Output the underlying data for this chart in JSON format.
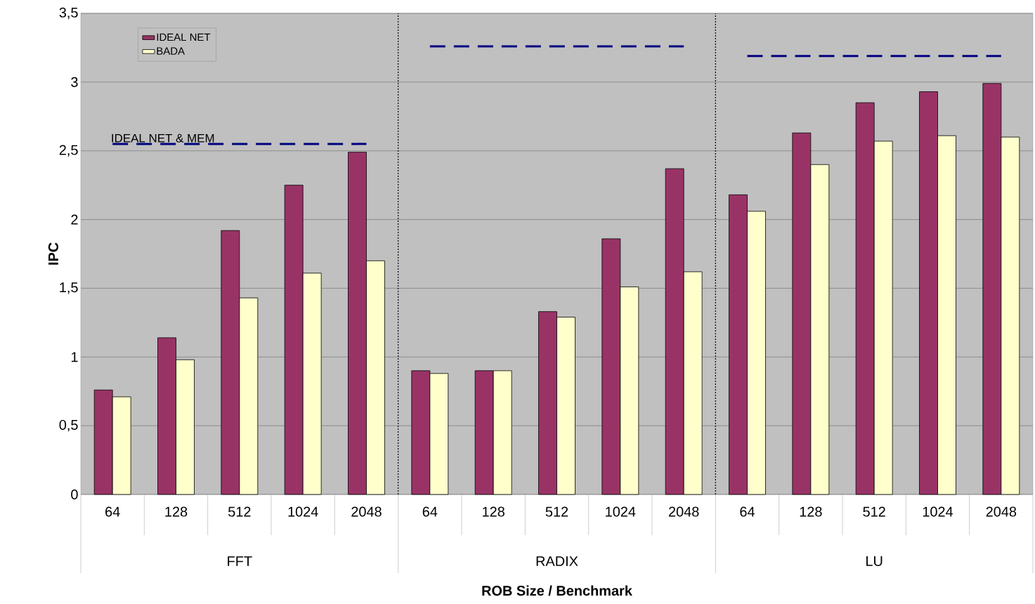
{
  "chart_data": {
    "type": "bar",
    "xlabel": "ROB Size / Benchmark",
    "ylabel": "IPC",
    "categories": [
      "64",
      "128",
      "512",
      "1024",
      "2048",
      "64",
      "128",
      "512",
      "1024",
      "2048",
      "64",
      "128",
      "512",
      "1024",
      "2048"
    ],
    "annotations": [
      "FFT",
      "RADIX",
      "LU"
    ],
    "series": [
      {
        "name": "IDEAL NET",
        "color": "#993366",
        "values": [
          0.76,
          1.14,
          1.92,
          2.25,
          2.49,
          0.9,
          0.9,
          1.33,
          1.86,
          2.37,
          2.18,
          2.63,
          2.85,
          2.93,
          2.99
        ]
      },
      {
        "name": "BADA",
        "color": "#ffffcc",
        "values": [
          0.71,
          0.98,
          1.43,
          1.61,
          1.7,
          0.88,
          0.9,
          1.29,
          1.51,
          1.62,
          2.06,
          2.4,
          2.57,
          2.61,
          2.6
        ]
      },
      {
        "name": "IDEAL NET & MEM",
        "type": "line",
        "line_style": "dashed",
        "color": "#000080",
        "values": [
          2.55,
          2.55,
          2.55,
          2.55,
          2.55,
          null,
          null,
          null,
          null,
          null,
          null,
          null,
          null,
          null,
          null
        ]
      },
      {
        "type": "line",
        "line_style": "dashed",
        "color": "#000080",
        "values": [
          null,
          null,
          null,
          null,
          null,
          3.26,
          3.26,
          3.26,
          3.26,
          3.26,
          null,
          null,
          null,
          null,
          null
        ]
      },
      {
        "type": "line",
        "line_style": "dashed",
        "color": "#000080",
        "values": [
          null,
          null,
          null,
          null,
          null,
          null,
          null,
          null,
          null,
          null,
          3.19,
          3.19,
          3.19,
          3.19,
          3.19
        ]
      }
    ],
    "ylim": [
      0,
      3.5
    ],
    "yticks": [
      0,
      {
        "value": 0.5,
        "label": "0,5"
      },
      1,
      {
        "value": 1.5,
        "label": "1,5"
      },
      2,
      {
        "value": 2.5,
        "label": "2,5"
      },
      3,
      {
        "value": 3.5,
        "label": "3,5"
      }
    ],
    "grid": "y",
    "legend": "top left"
  }
}
